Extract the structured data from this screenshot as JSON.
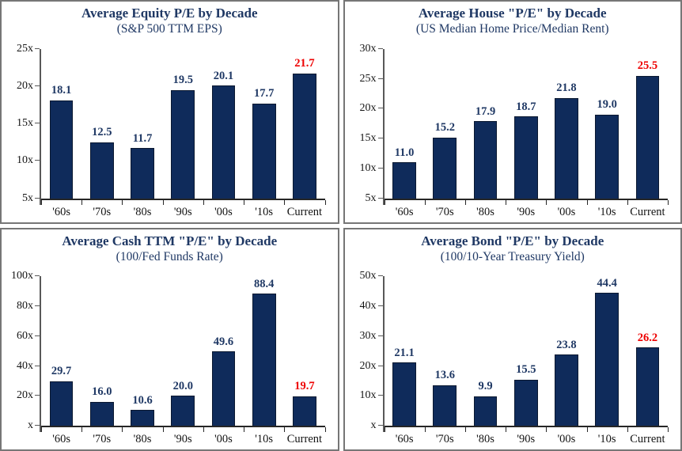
{
  "colors": {
    "bar_fill": "#0F2B5B",
    "bar_border": "#0A1830",
    "title_navy": "#1F3864",
    "value_label": "#1F3864",
    "highlight_value": "#EE0000",
    "axis_line": "#595959",
    "panel_border": "#767676",
    "tick_label": "#141414"
  },
  "chart_data": [
    {
      "type": "bar",
      "title": "Average Equity P/E by Decade",
      "subtitle": "(S&P 500 TTM EPS)",
      "categories": [
        "'60s",
        "'70s",
        "'80s",
        "'90s",
        "'00s",
        "'10s",
        "Current"
      ],
      "values": [
        18.1,
        12.5,
        11.7,
        19.5,
        20.1,
        17.7,
        21.7
      ],
      "value_labels": [
        "18.1",
        "12.5",
        "11.7",
        "19.5",
        "20.1",
        "17.7",
        "21.7"
      ],
      "highlight_category": "Current",
      "ymin": 5,
      "ymax": 25,
      "grid": false,
      "legend": false,
      "y_ticks": [
        {
          "value": 5,
          "label": "5x"
        },
        {
          "value": 10,
          "label": "10x"
        },
        {
          "value": 15,
          "label": "15x"
        },
        {
          "value": 20,
          "label": "20x"
        },
        {
          "value": 25,
          "label": "25x"
        }
      ]
    },
    {
      "type": "bar",
      "title": "Average House \"P/E\" by Decade",
      "subtitle": "(US Median Home Price/Median Rent)",
      "categories": [
        "'60s",
        "'70s",
        "'80s",
        "'90s",
        "'00s",
        "'10s",
        "Current"
      ],
      "values": [
        11.0,
        15.2,
        17.9,
        18.7,
        21.8,
        19.0,
        25.5
      ],
      "value_labels": [
        "11.0",
        "15.2",
        "17.9",
        "18.7",
        "21.8",
        "19.0",
        "25.5"
      ],
      "highlight_category": "Current",
      "ymin": 5,
      "ymax": 30,
      "grid": false,
      "legend": false,
      "y_ticks": [
        {
          "value": 5,
          "label": "5x"
        },
        {
          "value": 10,
          "label": "10x"
        },
        {
          "value": 15,
          "label": "15x"
        },
        {
          "value": 20,
          "label": "20x"
        },
        {
          "value": 25,
          "label": "25x"
        },
        {
          "value": 30,
          "label": "30x"
        }
      ]
    },
    {
      "type": "bar",
      "title": "Average Cash TTM \"P/E\" by Decade",
      "subtitle": "(100/Fed Funds Rate)",
      "categories": [
        "'60s",
        "'70s",
        "'80s",
        "'90s",
        "'00s",
        "'10s",
        "Current"
      ],
      "values": [
        29.7,
        16.0,
        10.6,
        20.0,
        49.6,
        88.4,
        19.7
      ],
      "value_labels": [
        "29.7",
        "16.0",
        "10.6",
        "20.0",
        "49.6",
        "88.4",
        "19.7"
      ],
      "highlight_category": "Current",
      "ymin": 0,
      "ymax": 100,
      "grid": false,
      "legend": false,
      "y_ticks": [
        {
          "value": 0,
          "label": "x"
        },
        {
          "value": 20,
          "label": "20x"
        },
        {
          "value": 40,
          "label": "40x"
        },
        {
          "value": 60,
          "label": "60x"
        },
        {
          "value": 80,
          "label": "80x"
        },
        {
          "value": 100,
          "label": "100x"
        }
      ]
    },
    {
      "type": "bar",
      "title": "Average Bond \"P/E\" by Decade",
      "subtitle": "(100/10-Year Treasury Yield)",
      "categories": [
        "'60s",
        "'70s",
        "'80s",
        "'90s",
        "'00s",
        "'10s",
        "Current"
      ],
      "values": [
        21.1,
        13.6,
        9.9,
        15.5,
        23.8,
        44.4,
        26.2
      ],
      "value_labels": [
        "21.1",
        "13.6",
        "9.9",
        "15.5",
        "23.8",
        "44.4",
        "26.2"
      ],
      "highlight_category": "Current",
      "ymin": 0,
      "ymax": 50,
      "grid": false,
      "legend": false,
      "y_ticks": [
        {
          "value": 0,
          "label": "x"
        },
        {
          "value": 10,
          "label": "10x"
        },
        {
          "value": 20,
          "label": "20x"
        },
        {
          "value": 30,
          "label": "30x"
        },
        {
          "value": 40,
          "label": "40x"
        },
        {
          "value": 50,
          "label": "50x"
        }
      ]
    }
  ]
}
